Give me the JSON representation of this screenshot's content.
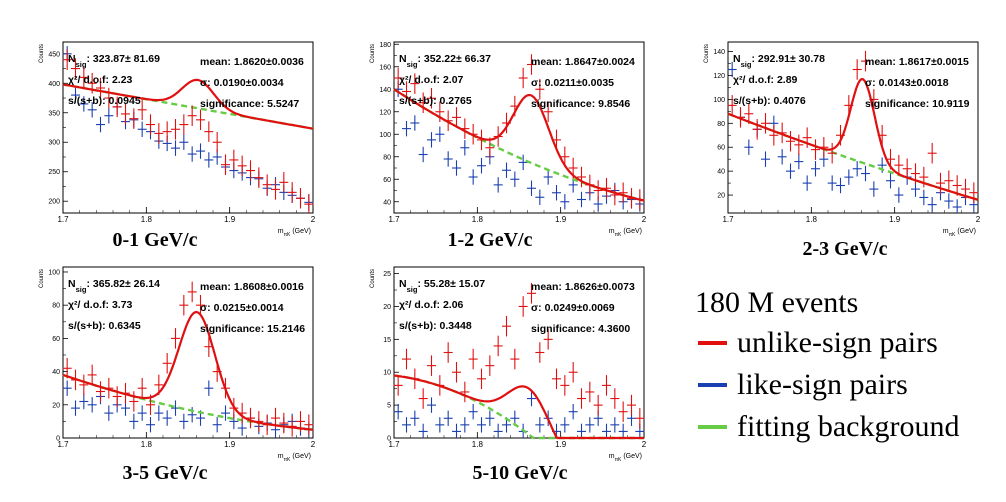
{
  "legend": {
    "events": "180 M events",
    "items": [
      {
        "label": "unlike-sign pairs",
        "color": "#e01010"
      },
      {
        "label": "like-sign pairs",
        "color": "#1a3fb0"
      },
      {
        "label": "fitting background",
        "color": "#66cc44"
      }
    ]
  },
  "chart_data": [
    {
      "type": "scatter",
      "caption": "0-1 GeV/c",
      "ylabel": "Counts",
      "xlabel": "m_{πK} (GeV)",
      "xlim": [
        1.7,
        2.0
      ],
      "ylim": [
        180,
        470
      ],
      "yticks": [
        200,
        250,
        300,
        350,
        400,
        450
      ],
      "xticks": [
        1.7,
        1.8,
        1.9,
        2
      ],
      "stats": {
        "nsig": "N_sig:  323.87±  81.69",
        "chi2": "χ²/ d.o.f: 2.23",
        "sb": "s/(s+b): 0.0945",
        "mean": "mean: 1.8620±0.0036",
        "sigma": "σ: 0.0190±0.0034",
        "signif": "significance: 5.5247"
      },
      "fit": {
        "b0": 398,
        "b1": -2.5,
        "b2": 0.0,
        "amp": 48,
        "mu": 1.862,
        "sigma": 0.019
      },
      "unlike": [
        [
          1.705,
          440
        ],
        [
          1.715,
          425
        ],
        [
          1.725,
          410
        ],
        [
          1.735,
          400
        ],
        [
          1.745,
          392
        ],
        [
          1.755,
          375
        ],
        [
          1.765,
          360
        ],
        [
          1.775,
          348
        ],
        [
          1.785,
          340
        ],
        [
          1.795,
          355
        ],
        [
          1.805,
          330
        ],
        [
          1.815,
          315
        ],
        [
          1.825,
          318
        ],
        [
          1.835,
          322
        ],
        [
          1.845,
          330
        ],
        [
          1.855,
          345
        ],
        [
          1.865,
          338
        ],
        [
          1.875,
          318
        ],
        [
          1.885,
          300
        ],
        [
          1.895,
          262
        ],
        [
          1.905,
          270
        ],
        [
          1.915,
          260
        ],
        [
          1.925,
          252
        ],
        [
          1.935,
          240
        ],
        [
          1.945,
          228
        ],
        [
          1.955,
          220
        ],
        [
          1.965,
          232
        ],
        [
          1.975,
          215
        ],
        [
          1.985,
          205
        ],
        [
          1.995,
          195
        ]
      ],
      "like": [
        [
          1.705,
          450
        ],
        [
          1.715,
          380
        ],
        [
          1.725,
          365
        ],
        [
          1.735,
          355
        ],
        [
          1.745,
          330
        ],
        [
          1.755,
          345
        ],
        [
          1.765,
          360
        ],
        [
          1.775,
          335
        ],
        [
          1.785,
          338
        ],
        [
          1.795,
          322
        ],
        [
          1.805,
          318
        ],
        [
          1.815,
          302
        ],
        [
          1.825,
          298
        ],
        [
          1.835,
          290
        ],
        [
          1.845,
          300
        ],
        [
          1.855,
          280
        ],
        [
          1.865,
          285
        ],
        [
          1.875,
          270
        ],
        [
          1.885,
          275
        ],
        [
          1.895,
          258
        ],
        [
          1.905,
          252
        ],
        [
          1.915,
          248
        ],
        [
          1.925,
          240
        ],
        [
          1.935,
          238
        ],
        [
          1.945,
          222
        ],
        [
          1.955,
          228
        ],
        [
          1.965,
          215
        ],
        [
          1.975,
          210
        ],
        [
          1.985,
          205
        ],
        [
          1.995,
          198
        ]
      ]
    },
    {
      "type": "scatter",
      "caption": "1-2 GeV/c",
      "ylabel": "Counts",
      "xlabel": "m_{πK} (GeV)",
      "xlim": [
        1.7,
        2.0
      ],
      "ylim": [
        30,
        182
      ],
      "yticks": [
        40,
        60,
        80,
        100,
        120,
        140,
        160,
        180
      ],
      "xticks": [
        1.7,
        1.8,
        1.9,
        2
      ],
      "stats": {
        "nsig": "N_sig:  352.22±  66.37",
        "chi2": "χ²/ d.o.f: 2.07",
        "sb": "s/(s+b): 0.2765",
        "mean": "mean: 1.8647±0.0024",
        "sigma": "σ: 0.0211±0.0035",
        "signif": "significance: 9.8546"
      },
      "fit": {
        "b0": 140,
        "b1": -4.8,
        "b2": 0.05,
        "amp": 60,
        "mu": 1.8647,
        "sigma": 0.0211
      },
      "unlike": [
        [
          1.705,
          150
        ],
        [
          1.715,
          138
        ],
        [
          1.725,
          145
        ],
        [
          1.735,
          128
        ],
        [
          1.745,
          132
        ],
        [
          1.755,
          120
        ],
        [
          1.765,
          112
        ],
        [
          1.775,
          115
        ],
        [
          1.785,
          105
        ],
        [
          1.795,
          100
        ],
        [
          1.805,
          95
        ],
        [
          1.815,
          88
        ],
        [
          1.825,
          98
        ],
        [
          1.835,
          110
        ],
        [
          1.845,
          125
        ],
        [
          1.855,
          150
        ],
        [
          1.865,
          162
        ],
        [
          1.875,
          140
        ],
        [
          1.885,
          120
        ],
        [
          1.895,
          95
        ],
        [
          1.905,
          80
        ],
        [
          1.915,
          70
        ],
        [
          1.925,
          62
        ],
        [
          1.935,
          55
        ],
        [
          1.945,
          50
        ],
        [
          1.955,
          52
        ],
        [
          1.965,
          46
        ],
        [
          1.975,
          48
        ],
        [
          1.985,
          43
        ],
        [
          1.995,
          42
        ]
      ],
      "like": [
        [
          1.705,
          140
        ],
        [
          1.715,
          105
        ],
        [
          1.725,
          110
        ],
        [
          1.735,
          82
        ],
        [
          1.745,
          95
        ],
        [
          1.755,
          100
        ],
        [
          1.765,
          78
        ],
        [
          1.775,
          70
        ],
        [
          1.785,
          88
        ],
        [
          1.795,
          62
        ],
        [
          1.805,
          72
        ],
        [
          1.815,
          80
        ],
        [
          1.825,
          55
        ],
        [
          1.835,
          68
        ],
        [
          1.845,
          60
        ],
        [
          1.855,
          75
        ],
        [
          1.865,
          52
        ],
        [
          1.875,
          44
        ],
        [
          1.885,
          62
        ],
        [
          1.895,
          48
        ],
        [
          1.905,
          40
        ],
        [
          1.915,
          55
        ],
        [
          1.925,
          42
        ],
        [
          1.935,
          48
        ],
        [
          1.945,
          38
        ],
        [
          1.955,
          45
        ],
        [
          1.965,
          50
        ],
        [
          1.975,
          40
        ],
        [
          1.985,
          42
        ],
        [
          1.995,
          38
        ]
      ]
    },
    {
      "type": "scatter",
      "caption": "2-3 GeV/c",
      "ylabel": "Counts",
      "xlabel": "m_{πK} (GeV)",
      "xlim": [
        1.7,
        2.0
      ],
      "ylim": [
        5,
        148
      ],
      "yticks": [
        20,
        40,
        60,
        80,
        100,
        120,
        140
      ],
      "xticks": [
        1.7,
        1.8,
        1.9,
        2
      ],
      "stats": {
        "nsig": "N_sig:  292.91±  30.78",
        "chi2": "χ²/ d.o.f: 2.89",
        "sb": "s/(s+b): 0.4076",
        "mean": "mean: 1.8617±0.0015",
        "sigma": "σ: 0.0143±0.0018",
        "signif": "significance: 10.9119"
      },
      "fit": {
        "b0": 88,
        "b1": -2.7,
        "b2": 0.01,
        "amp": 70,
        "mu": 1.8617,
        "sigma": 0.0143
      },
      "unlike": [
        [
          1.705,
          95
        ],
        [
          1.715,
          85
        ],
        [
          1.725,
          88
        ],
        [
          1.735,
          75
        ],
        [
          1.745,
          80
        ],
        [
          1.755,
          70
        ],
        [
          1.765,
          72
        ],
        [
          1.775,
          65
        ],
        [
          1.785,
          62
        ],
        [
          1.795,
          68
        ],
        [
          1.805,
          58
        ],
        [
          1.815,
          60
        ],
        [
          1.825,
          55
        ],
        [
          1.835,
          70
        ],
        [
          1.845,
          95
        ],
        [
          1.855,
          125
        ],
        [
          1.865,
          132
        ],
        [
          1.875,
          100
        ],
        [
          1.885,
          70
        ],
        [
          1.895,
          50
        ],
        [
          1.905,
          45
        ],
        [
          1.915,
          42
        ],
        [
          1.925,
          38
        ],
        [
          1.935,
          35
        ],
        [
          1.945,
          55
        ],
        [
          1.955,
          30
        ],
        [
          1.965,
          32
        ],
        [
          1.975,
          28
        ],
        [
          1.985,
          25
        ],
        [
          1.995,
          22
        ]
      ],
      "like": [
        [
          1.705,
          125
        ],
        [
          1.715,
          85
        ],
        [
          1.725,
          60
        ],
        [
          1.735,
          75
        ],
        [
          1.745,
          50
        ],
        [
          1.755,
          80
        ],
        [
          1.765,
          52
        ],
        [
          1.775,
          40
        ],
        [
          1.785,
          48
        ],
        [
          1.795,
          30
        ],
        [
          1.805,
          42
        ],
        [
          1.815,
          50
        ],
        [
          1.825,
          30
        ],
        [
          1.835,
          28
        ],
        [
          1.845,
          35
        ],
        [
          1.855,
          42
        ],
        [
          1.865,
          38
        ],
        [
          1.875,
          25
        ],
        [
          1.885,
          45
        ],
        [
          1.895,
          32
        ],
        [
          1.905,
          20
        ],
        [
          1.915,
          35
        ],
        [
          1.925,
          25
        ],
        [
          1.935,
          18
        ],
        [
          1.945,
          12
        ],
        [
          1.955,
          22
        ],
        [
          1.965,
          15
        ],
        [
          1.975,
          10
        ],
        [
          1.985,
          18
        ],
        [
          1.995,
          12
        ]
      ]
    },
    {
      "type": "scatter",
      "caption": "3-5 GeV/c",
      "ylabel": "Counts",
      "xlabel": "m_{πK} (GeV)",
      "xlim": [
        1.7,
        2.0
      ],
      "ylim": [
        0,
        103
      ],
      "yticks": [
        0,
        20,
        40,
        60,
        80,
        100
      ],
      "xticks": [
        1.7,
        1.8,
        1.9,
        2
      ],
      "stats": {
        "nsig": "N_sig:  365.82±  26.14",
        "chi2": "χ²/ d.o.f: 3.73",
        "sb": "s/(s+b): 0.6345",
        "mean": "mean: 1.8608±0.0016",
        "sigma": "σ: 0.0215±0.0014",
        "signif": "significance: 15.2146"
      },
      "fit": {
        "b0": 38,
        "b1": -1.7,
        "b2": 0.02,
        "amp": 60,
        "mu": 1.8608,
        "sigma": 0.0215
      },
      "unlike": [
        [
          1.705,
          42
        ],
        [
          1.715,
          35
        ],
        [
          1.725,
          32
        ],
        [
          1.735,
          38
        ],
        [
          1.745,
          28
        ],
        [
          1.755,
          30
        ],
        [
          1.765,
          25
        ],
        [
          1.775,
          27
        ],
        [
          1.785,
          22
        ],
        [
          1.795,
          30
        ],
        [
          1.805,
          20
        ],
        [
          1.815,
          32
        ],
        [
          1.825,
          45
        ],
        [
          1.835,
          60
        ],
        [
          1.845,
          80
        ],
        [
          1.855,
          88
        ],
        [
          1.865,
          80
        ],
        [
          1.875,
          55
        ],
        [
          1.885,
          40
        ],
        [
          1.895,
          30
        ],
        [
          1.905,
          18
        ],
        [
          1.915,
          15
        ],
        [
          1.925,
          12
        ],
        [
          1.935,
          10
        ],
        [
          1.945,
          8
        ],
        [
          1.955,
          12
        ],
        [
          1.965,
          9
        ],
        [
          1.975,
          7
        ],
        [
          1.985,
          10
        ],
        [
          1.995,
          8
        ]
      ],
      "like": [
        [
          1.705,
          30
        ],
        [
          1.715,
          18
        ],
        [
          1.725,
          22
        ],
        [
          1.735,
          20
        ],
        [
          1.745,
          25
        ],
        [
          1.755,
          15
        ],
        [
          1.765,
          20
        ],
        [
          1.775,
          18
        ],
        [
          1.785,
          10
        ],
        [
          1.795,
          15
        ],
        [
          1.805,
          8
        ],
        [
          1.815,
          15
        ],
        [
          1.825,
          12
        ],
        [
          1.835,
          18
        ],
        [
          1.845,
          10
        ],
        [
          1.855,
          14
        ],
        [
          1.865,
          12
        ],
        [
          1.875,
          30
        ],
        [
          1.885,
          8
        ],
        [
          1.895,
          15
        ],
        [
          1.905,
          10
        ],
        [
          1.915,
          6
        ],
        [
          1.925,
          12
        ],
        [
          1.935,
          7
        ],
        [
          1.945,
          9
        ],
        [
          1.955,
          5
        ],
        [
          1.965,
          8
        ],
        [
          1.975,
          10
        ],
        [
          1.985,
          6
        ],
        [
          1.995,
          5
        ]
      ]
    },
    {
      "type": "scatter",
      "caption": "5-10 GeV/c",
      "ylabel": "Counts",
      "xlabel": "m_{πK} (GeV)",
      "xlim": [
        1.7,
        2.0
      ],
      "ylim": [
        0,
        26
      ],
      "yticks": [
        0,
        5,
        10,
        15,
        20,
        25
      ],
      "xticks": [
        1.7,
        1.8,
        1.9,
        2
      ],
      "stats": {
        "nsig": "N_sig:  55.28±  15.07",
        "chi2": "χ²/ d.o.f: 2.06",
        "sb": "s/(s+b): 0.3448",
        "mean": "mean: 1.8626±0.0073",
        "sigma": "σ: 0.0249±0.0069",
        "signif": "significance: 4.3600"
      },
      "fit": {
        "b0": 9.5,
        "b1": -0.15,
        "b2": -0.025,
        "amp": 7,
        "mu": 1.8626,
        "sigma": 0.0249
      },
      "unlike": [
        [
          1.705,
          8
        ],
        [
          1.715,
          12
        ],
        [
          1.725,
          9
        ],
        [
          1.735,
          6
        ],
        [
          1.745,
          11
        ],
        [
          1.755,
          8
        ],
        [
          1.765,
          13
        ],
        [
          1.775,
          10
        ],
        [
          1.785,
          7
        ],
        [
          1.795,
          12
        ],
        [
          1.805,
          9
        ],
        [
          1.815,
          11
        ],
        [
          1.825,
          14
        ],
        [
          1.835,
          17
        ],
        [
          1.845,
          12
        ],
        [
          1.855,
          20
        ],
        [
          1.865,
          22
        ],
        [
          1.875,
          13
        ],
        [
          1.885,
          15
        ],
        [
          1.895,
          9
        ],
        [
          1.905,
          8
        ],
        [
          1.915,
          10
        ],
        [
          1.925,
          6
        ],
        [
          1.935,
          7
        ],
        [
          1.945,
          5
        ],
        [
          1.955,
          8
        ],
        [
          1.965,
          6
        ],
        [
          1.975,
          4
        ],
        [
          1.985,
          5
        ],
        [
          1.995,
          3
        ]
      ],
      "like": [
        [
          1.705,
          4
        ],
        [
          1.715,
          2
        ],
        [
          1.725,
          3
        ],
        [
          1.735,
          1
        ],
        [
          1.745,
          5
        ],
        [
          1.755,
          2
        ],
        [
          1.765,
          3
        ],
        [
          1.775,
          1
        ],
        [
          1.785,
          2
        ],
        [
          1.795,
          4
        ],
        [
          1.805,
          2
        ],
        [
          1.815,
          3
        ],
        [
          1.825,
          1
        ],
        [
          1.835,
          2
        ],
        [
          1.845,
          3
        ],
        [
          1.855,
          1
        ],
        [
          1.865,
          6
        ],
        [
          1.875,
          2
        ],
        [
          1.885,
          3
        ],
        [
          1.895,
          1
        ],
        [
          1.905,
          2
        ],
        [
          1.915,
          4
        ],
        [
          1.925,
          1
        ],
        [
          1.935,
          2
        ],
        [
          1.945,
          3
        ],
        [
          1.955,
          1
        ],
        [
          1.965,
          2
        ],
        [
          1.975,
          1
        ],
        [
          1.985,
          3
        ],
        [
          1.995,
          1
        ]
      ]
    }
  ]
}
